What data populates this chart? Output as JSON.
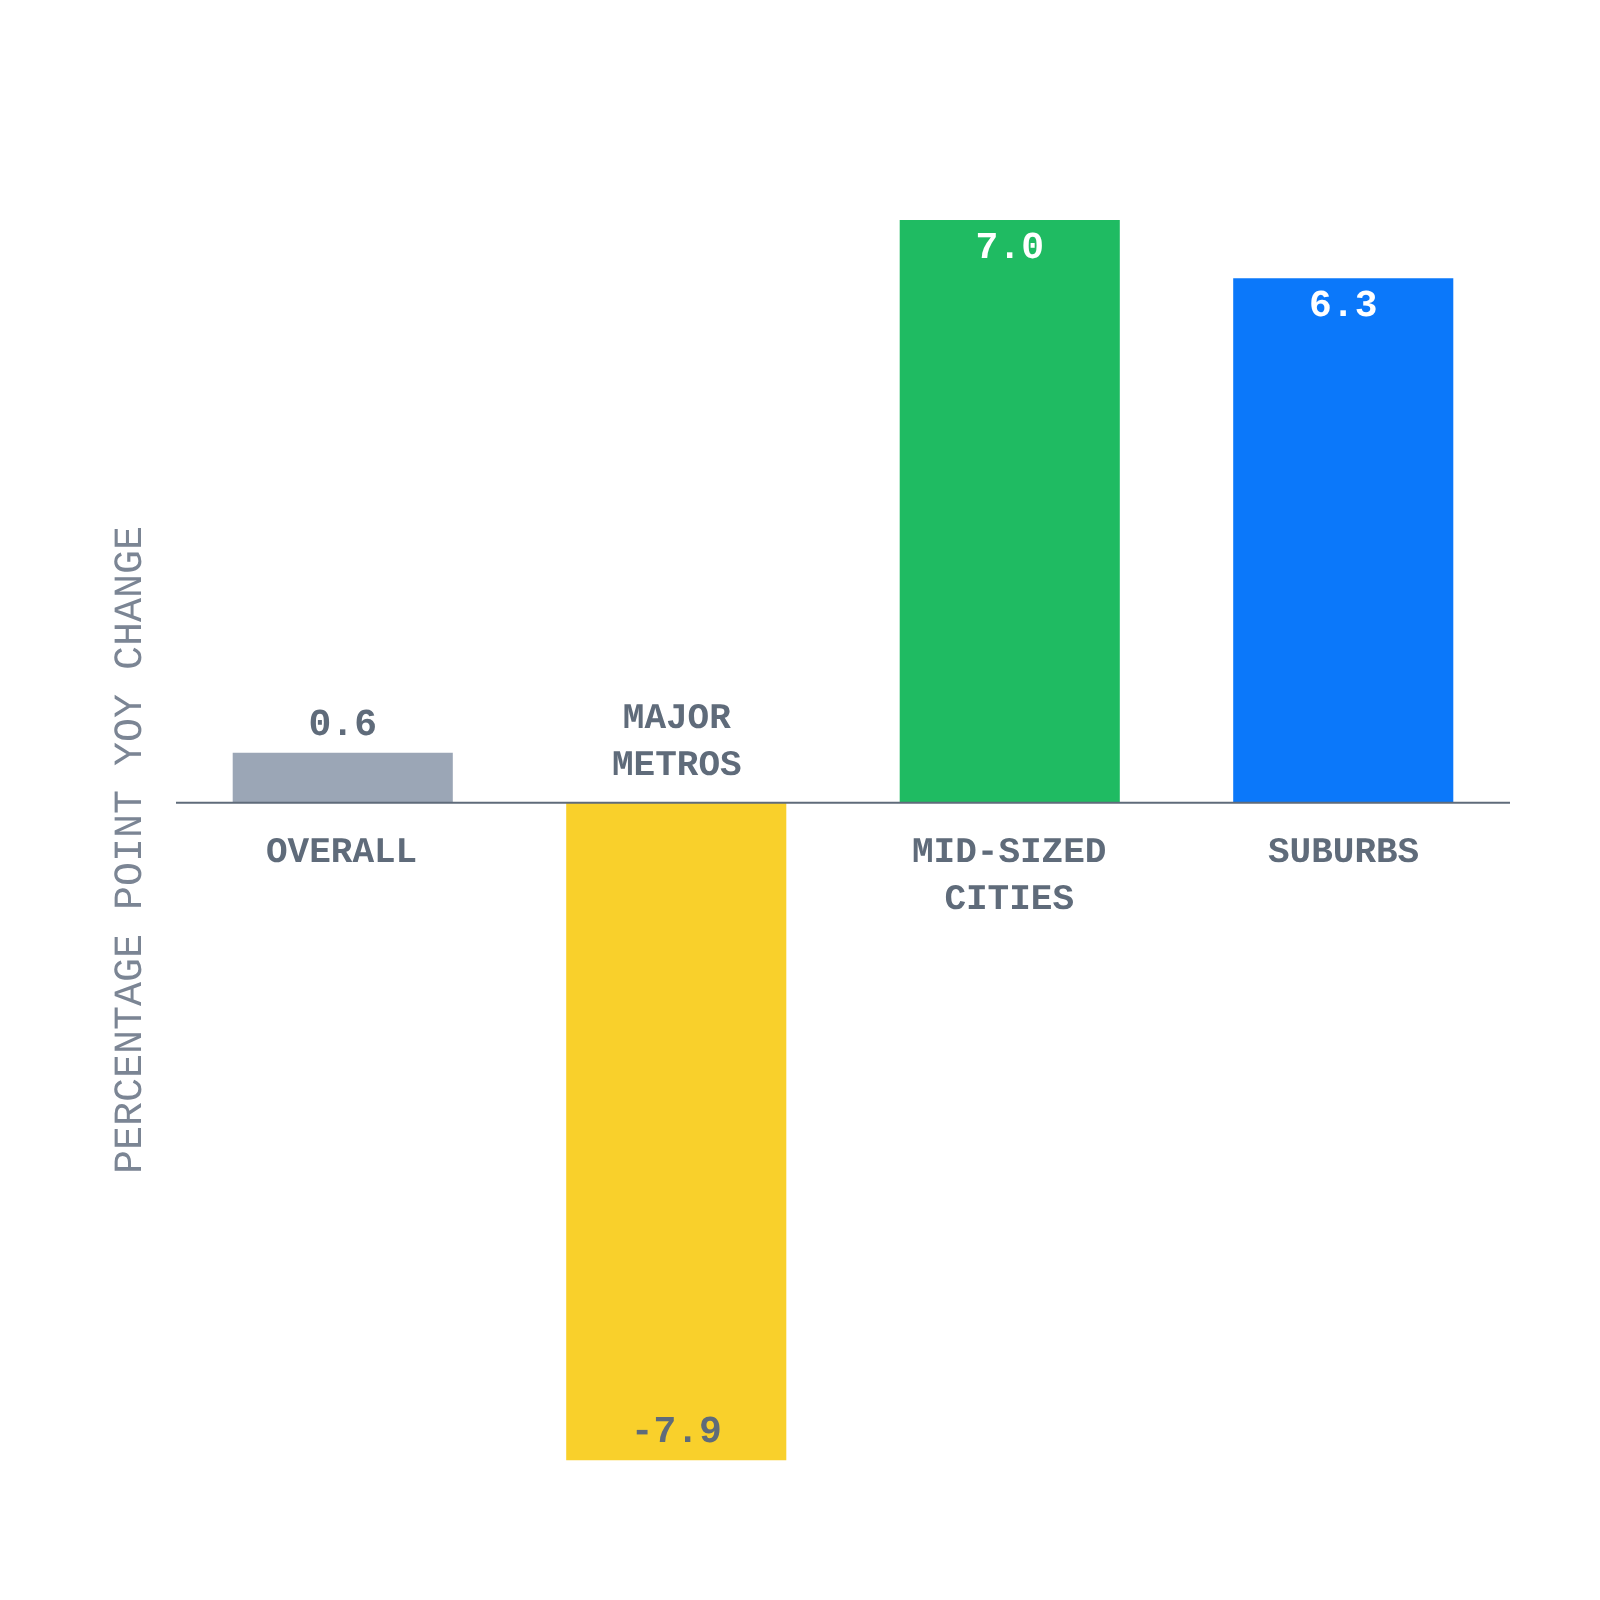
{
  "chart_data": {
    "type": "bar",
    "ylabel": "PERCENTAGE POINT YOY CHANGE",
    "categories": [
      "OVERALL",
      "MAJOR METROS",
      "MID-SIZED CITIES",
      "SUBURBS"
    ],
    "values": [
      0.6,
      -7.9,
      7.0,
      6.3
    ],
    "colors": [
      "#9ba6b6",
      "#f9d02b",
      "#1fbb62",
      "#0b78fa"
    ],
    "value_labels": [
      "0.6",
      "-7.9",
      "7.0",
      "6.3"
    ],
    "legend": false
  }
}
